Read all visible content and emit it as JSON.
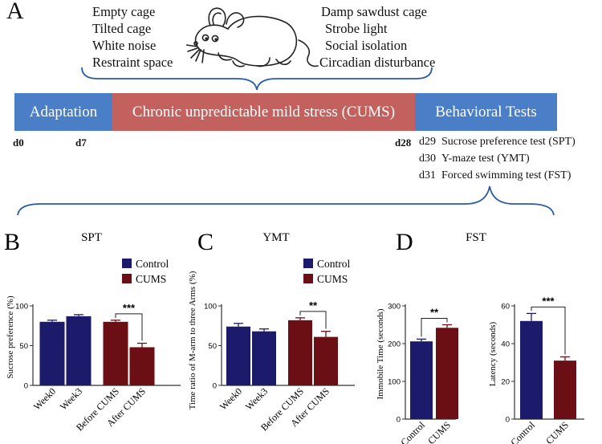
{
  "panel_a": {
    "letter": "A",
    "stressors_left": [
      "Empty cage",
      "Tilted cage",
      "White noise",
      "Restraint space"
    ],
    "stressors_right": [
      "Damp sawdust cage",
      "Strobe light",
      "Social isolation",
      "Circadian disturbance"
    ],
    "timeline": {
      "adaptation": "Adaptation",
      "cums": "Chronic unpredictable mild stress (CUMS)",
      "behavioral": "Behavioral Tests",
      "colors": {
        "adaptation": "#4a7fc8",
        "cums": "#c2615e",
        "behavioral": "#4a7fc8"
      }
    },
    "days": {
      "d0": "d0",
      "d7": "d7",
      "d28": "d28"
    },
    "tests": [
      {
        "day": "d29",
        "name": "Sucrose preference test (SPT)"
      },
      {
        "day": "d30",
        "name": "Y-maze test (YMT)"
      },
      {
        "day": "d31",
        "name": "Forced swimming test (FST)"
      }
    ]
  },
  "colors": {
    "control": "#1c1a6b",
    "cums": "#6b0f14"
  },
  "chart_data": [
    {
      "type": "bar",
      "panel": "B",
      "title": "SPT",
      "ylabel": "Sucrose preference (%)",
      "categories": [
        "Week0",
        "Week3",
        "Before CUMS",
        "After CUMS"
      ],
      "series": [
        {
          "name": "Control",
          "values": [
            80,
            87,
            null,
            null
          ],
          "errors": [
            2,
            2,
            null,
            null
          ]
        },
        {
          "name": "CUMS",
          "values": [
            null,
            null,
            80,
            48
          ],
          "errors": [
            null,
            null,
            2,
            5
          ]
        }
      ],
      "ylim": [
        0,
        100
      ],
      "yticks": [
        0,
        50,
        100
      ],
      "legend": [
        "Control",
        "CUMS"
      ],
      "significance": {
        "between": [
          2,
          3
        ],
        "label": "***"
      }
    },
    {
      "type": "bar",
      "panel": "C",
      "title": "YMT",
      "ylabel": "Time ratio of M-arm to three Arms (%)",
      "categories": [
        "Week0",
        "Week3",
        "Before CUMS",
        "After CUMS"
      ],
      "series": [
        {
          "name": "Control",
          "values": [
            74,
            68,
            null,
            null
          ],
          "errors": [
            4,
            3,
            null,
            null
          ]
        },
        {
          "name": "CUMS",
          "values": [
            null,
            null,
            82,
            61
          ],
          "errors": [
            null,
            null,
            3,
            7
          ]
        }
      ],
      "ylim": [
        0,
        100
      ],
      "yticks": [
        0,
        50,
        100
      ],
      "legend": [
        "Control",
        "CUMS"
      ],
      "significance": {
        "between": [
          2,
          3
        ],
        "label": "**"
      }
    },
    {
      "type": "bar",
      "panel": "D",
      "title": "FST",
      "ylabel": "Immobile Time (seconds)",
      "categories": [
        "Control",
        "CUMS"
      ],
      "series": [
        {
          "name": "Control",
          "values": [
            206,
            null
          ],
          "errors": [
            6,
            null
          ]
        },
        {
          "name": "CUMS",
          "values": [
            null,
            242
          ],
          "errors": [
            null,
            8
          ]
        }
      ],
      "ylim": [
        0,
        300
      ],
      "yticks": [
        0,
        100,
        200,
        300
      ],
      "significance": {
        "between": [
          0,
          1
        ],
        "label": "**"
      }
    },
    {
      "type": "bar",
      "panel": "D",
      "title": "",
      "ylabel": "Latency (seconds)",
      "categories": [
        "Control",
        "CUMS"
      ],
      "series": [
        {
          "name": "Control",
          "values": [
            52,
            null
          ],
          "errors": [
            4,
            null
          ]
        },
        {
          "name": "CUMS",
          "values": [
            null,
            31
          ],
          "errors": [
            null,
            2
          ]
        }
      ],
      "ylim": [
        0,
        60
      ],
      "yticks": [
        0,
        20,
        40,
        60
      ],
      "significance": {
        "between": [
          0,
          1
        ],
        "label": "***"
      }
    }
  ]
}
